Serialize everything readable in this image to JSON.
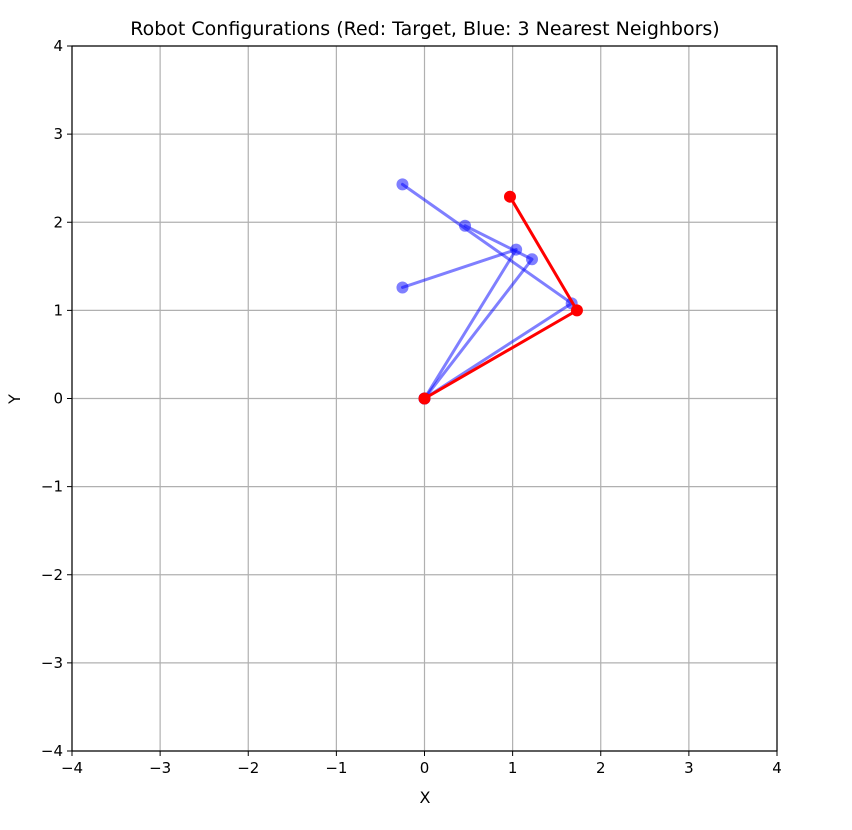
{
  "chart_data": {
    "type": "line",
    "title": "Robot Configurations (Red: Target, Blue: 3 Nearest Neighbors)",
    "xlabel": "X",
    "ylabel": "Y",
    "xlim": [
      -4,
      4
    ],
    "ylim": [
      -4,
      4
    ],
    "x_ticks": [
      -4,
      -3,
      -2,
      -1,
      0,
      1,
      2,
      3,
      4
    ],
    "y_ticks": [
      -4,
      -3,
      -2,
      -1,
      0,
      1,
      2,
      3,
      4
    ],
    "x_tick_labels": [
      "−4",
      "−3",
      "−2",
      "−1",
      "0",
      "1",
      "2",
      "3",
      "4"
    ],
    "y_tick_labels": [
      "−4",
      "−3",
      "−2",
      "−1",
      "0",
      "1",
      "2",
      "3",
      "4"
    ],
    "grid": true,
    "series": [
      {
        "role": "target",
        "color": "#ff0000",
        "points": [
          [
            0,
            0
          ],
          [
            1.73,
            1.0
          ],
          [
            0.97,
            2.29
          ]
        ]
      },
      {
        "role": "neighbor",
        "color": "#0000ff",
        "points": [
          [
            0,
            0
          ],
          [
            1.67,
            1.08
          ],
          [
            -0.25,
            2.43
          ]
        ]
      },
      {
        "role": "neighbor",
        "color": "#0000ff",
        "points": [
          [
            0,
            0
          ],
          [
            1.04,
            1.69
          ],
          [
            -0.25,
            1.26
          ]
        ]
      },
      {
        "role": "neighbor",
        "color": "#0000ff",
        "points": [
          [
            0,
            0
          ],
          [
            1.22,
            1.58
          ],
          [
            0.46,
            1.96
          ]
        ]
      }
    ]
  }
}
